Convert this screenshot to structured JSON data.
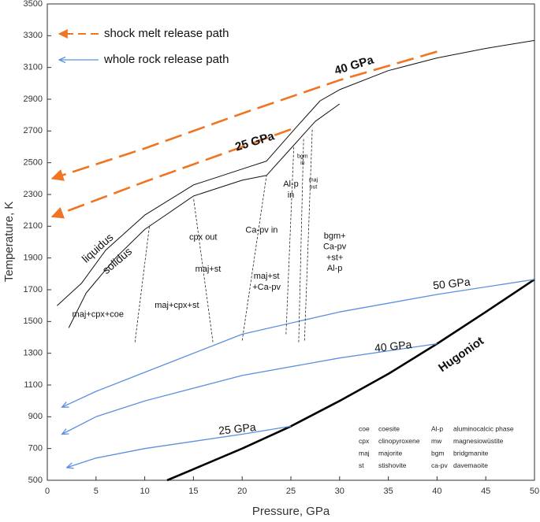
{
  "chart_data": {
    "type": "line",
    "xlabel": "Pressure, GPa",
    "ylabel": "Temperature, K",
    "xlim": [
      0,
      50
    ],
    "ylim": [
      500,
      3500
    ],
    "xticks": [
      0,
      5,
      10,
      15,
      20,
      25,
      30,
      35,
      40,
      45,
      50
    ],
    "yticks": [
      500,
      700,
      900,
      1100,
      1300,
      1500,
      1700,
      1900,
      2100,
      2300,
      2500,
      2700,
      2900,
      3100,
      3300,
      3500
    ],
    "legend": [
      {
        "text": "shock melt release path",
        "color": "#f07522",
        "style": "dashed"
      },
      {
        "text": "whole rock release path",
        "color": "#5b8fe0",
        "style": "solid"
      }
    ],
    "series": [
      {
        "color": "#111111",
        "style": "solid",
        "width": 1,
        "x": [
          1,
          3.5,
          6,
          10,
          15,
          20,
          22.5,
          25.5,
          28,
          30,
          35,
          40,
          45,
          50
        ],
        "y": [
          1600,
          1740,
          1950,
          2170,
          2360,
          2460,
          2510,
          2720,
          2890,
          2960,
          3080,
          3160,
          3220,
          3270
        ]
      },
      {
        "color": "#111111",
        "style": "solid",
        "width": 1,
        "x": [
          2.2,
          4,
          7,
          10,
          15,
          20,
          22.5,
          25,
          27.5,
          30
        ],
        "y": [
          1460,
          1680,
          1900,
          2080,
          2290,
          2390,
          2420,
          2590,
          2760,
          2870
        ]
      },
      {
        "color": "#000000",
        "style": "solid",
        "width": 2.6,
        "x": [
          12.3,
          15,
          20,
          25,
          30,
          35,
          40,
          45,
          50
        ],
        "y": [
          500,
          570,
          700,
          840,
          1000,
          1170,
          1360,
          1560,
          1765
        ]
      },
      {
        "color": "#5b8fe0",
        "style": "solid",
        "width": 1.3,
        "arrow": true,
        "x": [
          50,
          40,
          30,
          20,
          10,
          5,
          1.5
        ],
        "y": [
          1765,
          1670,
          1560,
          1420,
          1180,
          1060,
          960
        ]
      },
      {
        "color": "#5b8fe0",
        "style": "solid",
        "width": 1.3,
        "arrow": true,
        "x": [
          40,
          30,
          20,
          10,
          5,
          1.5
        ],
        "y": [
          1360,
          1270,
          1160,
          1000,
          900,
          790
        ]
      },
      {
        "color": "#5b8fe0",
        "style": "solid",
        "width": 1.3,
        "arrow": true,
        "x": [
          25,
          20,
          10,
          5,
          2
        ],
        "y": [
          840,
          790,
          700,
          640,
          580
        ]
      },
      {
        "color": "#f07522",
        "style": "dashed",
        "width": 2.6,
        "arrow": true,
        "x": [
          40,
          30,
          20,
          10,
          0.5
        ],
        "y": [
          3200,
          3020,
          2810,
          2590,
          2400
        ]
      },
      {
        "color": "#f07522",
        "style": "dashed",
        "width": 2.6,
        "arrow": true,
        "x": [
          25,
          20,
          10,
          0.5
        ],
        "y": [
          2710,
          2600,
          2380,
          2160
        ]
      },
      {
        "color": "#222222",
        "style": "dotted",
        "width": 0.8,
        "x": [
          9,
          10.5
        ],
        "y": [
          1370,
          2110
        ]
      },
      {
        "color": "#222222",
        "style": "dotted",
        "width": 0.8,
        "x": [
          17,
          15
        ],
        "y": [
          1370,
          2280
        ]
      },
      {
        "color": "#222222",
        "style": "dotted",
        "width": 0.8,
        "x": [
          20,
          22.5
        ],
        "y": [
          1380,
          2420
        ]
      },
      {
        "color": "#222222",
        "style": "dotted",
        "width": 0.8,
        "x": [
          24.5,
          25.3
        ],
        "y": [
          1420,
          2600
        ]
      },
      {
        "color": "#222222",
        "style": "dotted",
        "width": 0.8,
        "x": [
          25.8,
          26.3
        ],
        "y": [
          1370,
          2650
        ]
      },
      {
        "color": "#222222",
        "style": "dotted",
        "width": 0.8,
        "x": [
          26.4,
          27.2
        ],
        "y": [
          1380,
          2720
        ]
      }
    ],
    "annotations": [
      {
        "lines": [
          "liquidus"
        ],
        "x": 5.2,
        "y": 1960,
        "angle": -42,
        "size": 14
      },
      {
        "lines": [
          "solidus"
        ],
        "x": 7.2,
        "y": 1880,
        "angle": -40,
        "size": 14
      },
      {
        "lines": [
          "Hugoniot"
        ],
        "x": 42.5,
        "y": 1290,
        "angle": -35,
        "size": 15,
        "bold": true
      },
      {
        "lines": [
          "40 GPa"
        ],
        "x": 31.5,
        "y": 3110,
        "angle": -17,
        "size": 15,
        "bold": true,
        "color": "#f07522"
      },
      {
        "lines": [
          "25 GPa"
        ],
        "x": 21.3,
        "y": 2630,
        "angle": -17,
        "size": 15,
        "bold": true,
        "color": "#f07522"
      },
      {
        "lines": [
          "50 GPa"
        ],
        "x": 41.5,
        "y": 1735,
        "angle": -6,
        "size": 14,
        "color": "#5b8fe0"
      },
      {
        "lines": [
          "40 GPa"
        ],
        "x": 35.5,
        "y": 1340,
        "angle": -6,
        "size": 14,
        "color": "#5b8fe0"
      },
      {
        "lines": [
          "25 GPa"
        ],
        "x": 19.5,
        "y": 820,
        "angle": -6,
        "size": 14,
        "color": "#5b8fe0"
      },
      {
        "lines": [
          "maj+cpx+coe"
        ],
        "x": 5.2,
        "y": 1545
      },
      {
        "lines": [
          "maj+cpx+st"
        ],
        "x": 13.3,
        "y": 1600
      },
      {
        "lines": [
          "cpx out"
        ],
        "x": 16,
        "y": 2030
      },
      {
        "lines": [
          "maj+st"
        ],
        "x": 16.5,
        "y": 1830
      },
      {
        "lines": [
          "Ca-pv in"
        ],
        "x": 22,
        "y": 2075
      },
      {
        "lines": [
          "maj+st",
          "+Ca-pv"
        ],
        "x": 22.5,
        "y": 1750
      },
      {
        "lines": [
          "Al-p",
          "in"
        ],
        "x": 25,
        "y": 2330
      },
      {
        "lines": [
          "bgm",
          "in"
        ],
        "x": 26.2,
        "y": 2520,
        "size": 7
      },
      {
        "lines": [
          "maj",
          "out"
        ],
        "x": 27.3,
        "y": 2370,
        "size": 7
      },
      {
        "lines": [
          "bgm+",
          "Ca-pv",
          "+st+",
          "Al-p"
        ],
        "x": 29.5,
        "y": 1935
      }
    ],
    "abbreviations": [
      [
        [
          "coe",
          "coesite"
        ],
        [
          "cpx",
          "clinopyroxene"
        ],
        [
          "maj",
          "majorite"
        ],
        [
          "st",
          "stishovite"
        ]
      ],
      [
        [
          "Al-p",
          "aluminocalcic phase"
        ],
        [
          "mw",
          "magnesiowüstite"
        ],
        [
          "bgm",
          "bridgmanite"
        ],
        [
          "ca-pv",
          "davemaoite"
        ]
      ]
    ]
  }
}
